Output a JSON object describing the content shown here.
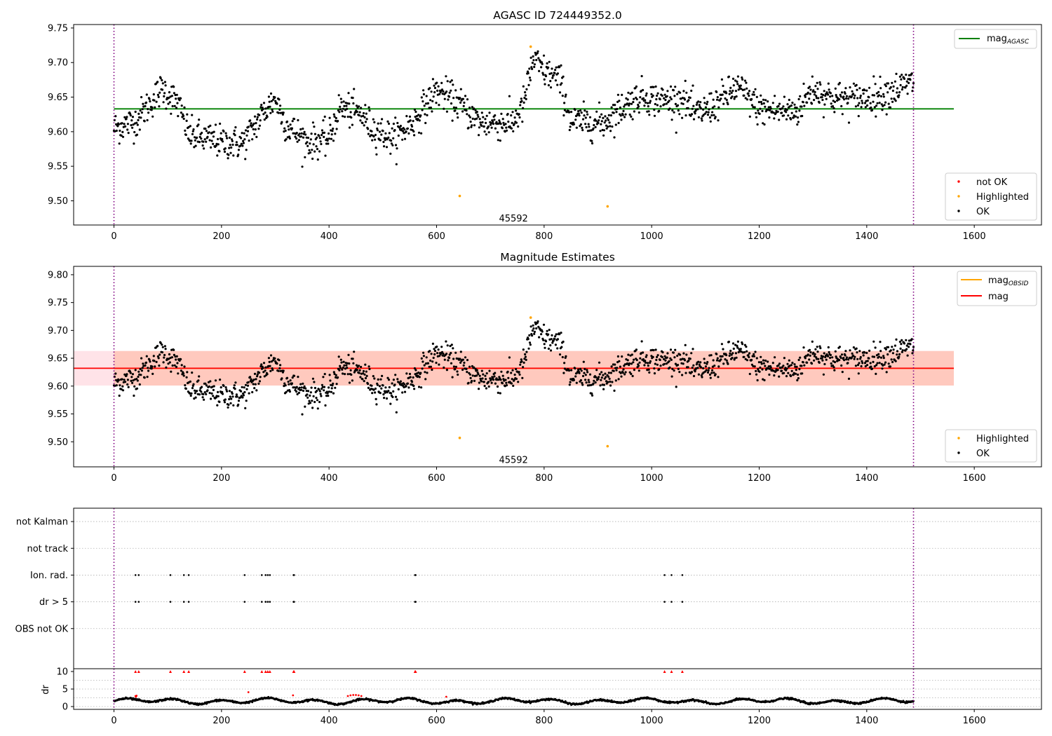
{
  "colors": {
    "ok": "#000000",
    "not_ok": "#ff0000",
    "highlighted": "#ffa500",
    "mag_agasc_line": "#008000",
    "mag_obsid_line": "#ffa500",
    "mag_line": "#ff0000",
    "band_mag": "#ffc0cb",
    "band_obsid": "#ffa07a",
    "obs_boundary": "#800080",
    "grid": "#b0b0b0"
  },
  "chart_data": [
    {
      "id": "agasc",
      "type": "scatter",
      "title": "AGASC ID 724449352.0",
      "xlim": [
        -75,
        1725
      ],
      "ylim": [
        9.465,
        9.755
      ],
      "xticks": [
        0,
        200,
        400,
        600,
        800,
        1000,
        1200,
        1400,
        1600
      ],
      "yticks": [
        9.5,
        9.55,
        9.6,
        9.65,
        9.7,
        9.75
      ],
      "obs_boundaries": [
        0,
        1487
      ],
      "obsid_annotation": {
        "text": "45592",
        "x": 743,
        "y": 9.474
      },
      "reference_lines": [
        {
          "name": "mag",
          "name_subscript": "AGASC",
          "value": 9.633,
          "x_range": [
            0,
            1562
          ],
          "color_key": "mag_agasc_line"
        }
      ],
      "legends": [
        {
          "position": "upper right",
          "entries": [
            {
              "label": "mag",
              "subscript": "AGASC",
              "kind": "line",
              "color_key": "mag_agasc_line"
            }
          ]
        },
        {
          "position": "lower right",
          "entries": [
            {
              "label": "not OK",
              "kind": "marker",
              "color_key": "not_ok"
            },
            {
              "label": "Highlighted",
              "kind": "marker",
              "color_key": "highlighted"
            },
            {
              "label": "OK",
              "kind": "marker",
              "color_key": "ok"
            }
          ]
        }
      ],
      "series": [
        {
          "name": "OK",
          "color_key": "ok",
          "n_points": 1487,
          "x_range": [
            0,
            1487
          ],
          "trend": [
            [
              0,
              9.605
            ],
            [
              40,
              9.615
            ],
            [
              90,
              9.663
            ],
            [
              120,
              9.64
            ],
            [
              140,
              9.595
            ],
            [
              200,
              9.585
            ],
            [
              240,
              9.583
            ],
            [
              280,
              9.63
            ],
            [
              300,
              9.648
            ],
            [
              320,
              9.61
            ],
            [
              360,
              9.585
            ],
            [
              400,
              9.59
            ],
            [
              420,
              9.635
            ],
            [
              460,
              9.625
            ],
            [
              480,
              9.605
            ],
            [
              520,
              9.59
            ],
            [
              560,
              9.617
            ],
            [
              600,
              9.66
            ],
            [
              640,
              9.642
            ],
            [
              680,
              9.613
            ],
            [
              740,
              9.612
            ],
            [
              760,
              9.635
            ],
            [
              780,
              9.705
            ],
            [
              800,
              9.687
            ],
            [
              830,
              9.675
            ],
            [
              850,
              9.615
            ],
            [
              910,
              9.613
            ],
            [
              950,
              9.638
            ],
            [
              980,
              9.652
            ],
            [
              1020,
              9.645
            ],
            [
              1060,
              9.648
            ],
            [
              1080,
              9.625
            ],
            [
              1110,
              9.635
            ],
            [
              1160,
              9.665
            ],
            [
              1200,
              9.633
            ],
            [
              1240,
              9.63
            ],
            [
              1270,
              9.63
            ],
            [
              1300,
              9.662
            ],
            [
              1340,
              9.648
            ],
            [
              1380,
              9.648
            ],
            [
              1420,
              9.652
            ],
            [
              1450,
              9.66
            ],
            [
              1487,
              9.672
            ]
          ],
          "scatter_sd": 0.012
        },
        {
          "name": "Highlighted",
          "color_key": "highlighted",
          "points": [
            [
              643,
              9.507
            ],
            [
              775,
              9.723
            ],
            [
              918,
              9.492
            ]
          ]
        },
        {
          "name": "not OK",
          "color_key": "not_ok",
          "points": []
        }
      ]
    },
    {
      "id": "estimates",
      "type": "scatter",
      "title": "Magnitude Estimates",
      "xlim": [
        -75,
        1725
      ],
      "ylim": [
        9.455,
        9.815
      ],
      "xticks": [
        0,
        200,
        400,
        600,
        800,
        1000,
        1200,
        1400,
        1600
      ],
      "yticks": [
        9.5,
        9.55,
        9.6,
        9.65,
        9.7,
        9.75,
        9.8
      ],
      "obs_boundaries": [
        0,
        1487
      ],
      "obsid_annotation": {
        "text": "45592",
        "x": 743,
        "y": 9.467
      },
      "bands": [
        {
          "series": "mag",
          "lo": 9.601,
          "hi": 9.663,
          "x_range": [
            -75,
            1562
          ],
          "color_key": "band_mag"
        },
        {
          "series": "mag_OBSID",
          "lo": 9.601,
          "hi": 9.663,
          "x_range": [
            0,
            1562
          ],
          "color_key": "band_obsid"
        }
      ],
      "reference_lines": [
        {
          "name": "mag",
          "name_subscript": "OBSID",
          "value": 9.632,
          "x_range": [
            0,
            1562
          ],
          "color_key": "mag_obsid_line"
        },
        {
          "name": "mag",
          "value": 9.632,
          "x_range": [
            -75,
            1562
          ],
          "color_key": "mag_line"
        }
      ],
      "legends": [
        {
          "position": "upper right",
          "entries": [
            {
              "label": "mag",
              "subscript": "OBSID",
              "kind": "line",
              "color_key": "mag_obsid_line"
            },
            {
              "label": "mag",
              "kind": "line",
              "color_key": "mag_line"
            }
          ]
        },
        {
          "position": "lower right",
          "entries": [
            {
              "label": "Highlighted",
              "kind": "marker",
              "color_key": "highlighted"
            },
            {
              "label": "OK",
              "kind": "marker",
              "color_key": "ok"
            }
          ]
        }
      ],
      "series": [
        {
          "name": "OK",
          "same_as": "agasc.OK",
          "color_key": "ok"
        },
        {
          "name": "Highlighted",
          "color_key": "highlighted",
          "points": [
            [
              643,
              9.507
            ],
            [
              775,
              9.723
            ],
            [
              918,
              9.492
            ]
          ]
        }
      ]
    },
    {
      "id": "flags",
      "type": "scatter",
      "xlim": [
        -75,
        1725
      ],
      "ylim": [
        -0.5,
        5.5
      ],
      "category_labels": [
        "OBS not OK",
        "dr > 5",
        "Ion. rad.",
        "not track",
        "not Kalman"
      ],
      "category_values": [
        1,
        2,
        3,
        4,
        5
      ],
      "obs_boundaries": [
        0,
        1487
      ],
      "grid": true,
      "series": [
        {
          "name": "Ion. rad.",
          "y": 3,
          "x": [
            40,
            46,
            105,
            130,
            139,
            243,
            275,
            282,
            286,
            290,
            334,
            335,
            560,
            561,
            1024,
            1037,
            1057
          ]
        },
        {
          "name": "dr > 5",
          "y": 2,
          "x": [
            40,
            46,
            105,
            130,
            139,
            243,
            275,
            282,
            286,
            290,
            334,
            335,
            560,
            561,
            1024,
            1037,
            1057
          ]
        }
      ]
    },
    {
      "id": "dr",
      "type": "scatter",
      "ylabel": "dr",
      "xlim": [
        -75,
        1725
      ],
      "ylim": [
        -0.8,
        10.8
      ],
      "xticks": [
        0,
        200,
        400,
        600,
        800,
        1000,
        1200,
        1400,
        1600
      ],
      "yticks": [
        0,
        5,
        10
      ],
      "obs_boundaries": [
        0,
        1487
      ],
      "grid": true,
      "series": [
        {
          "name": "dr",
          "color_key": "ok",
          "n_points": 1487,
          "x_range": [
            0,
            1487
          ],
          "typical_range": [
            0.3,
            2.8
          ],
          "red_points": [
            [
              40,
              3.0
            ],
            [
              41,
              2.8
            ],
            [
              42,
              3.1
            ],
            [
              250,
              4.1
            ],
            [
              333,
              3.2
            ],
            [
              435,
              3.0
            ],
            [
              440,
              3.2
            ],
            [
              445,
              3.3
            ],
            [
              450,
              3.3
            ],
            [
              455,
              3.2
            ],
            [
              460,
              3.0
            ],
            [
              618,
              2.8
            ]
          ],
          "clipped_red_at_10": [
            40,
            46,
            105,
            130,
            139,
            243,
            275,
            282,
            286,
            290,
            334,
            335,
            560,
            561,
            1024,
            1037,
            1057
          ]
        }
      ]
    }
  ]
}
